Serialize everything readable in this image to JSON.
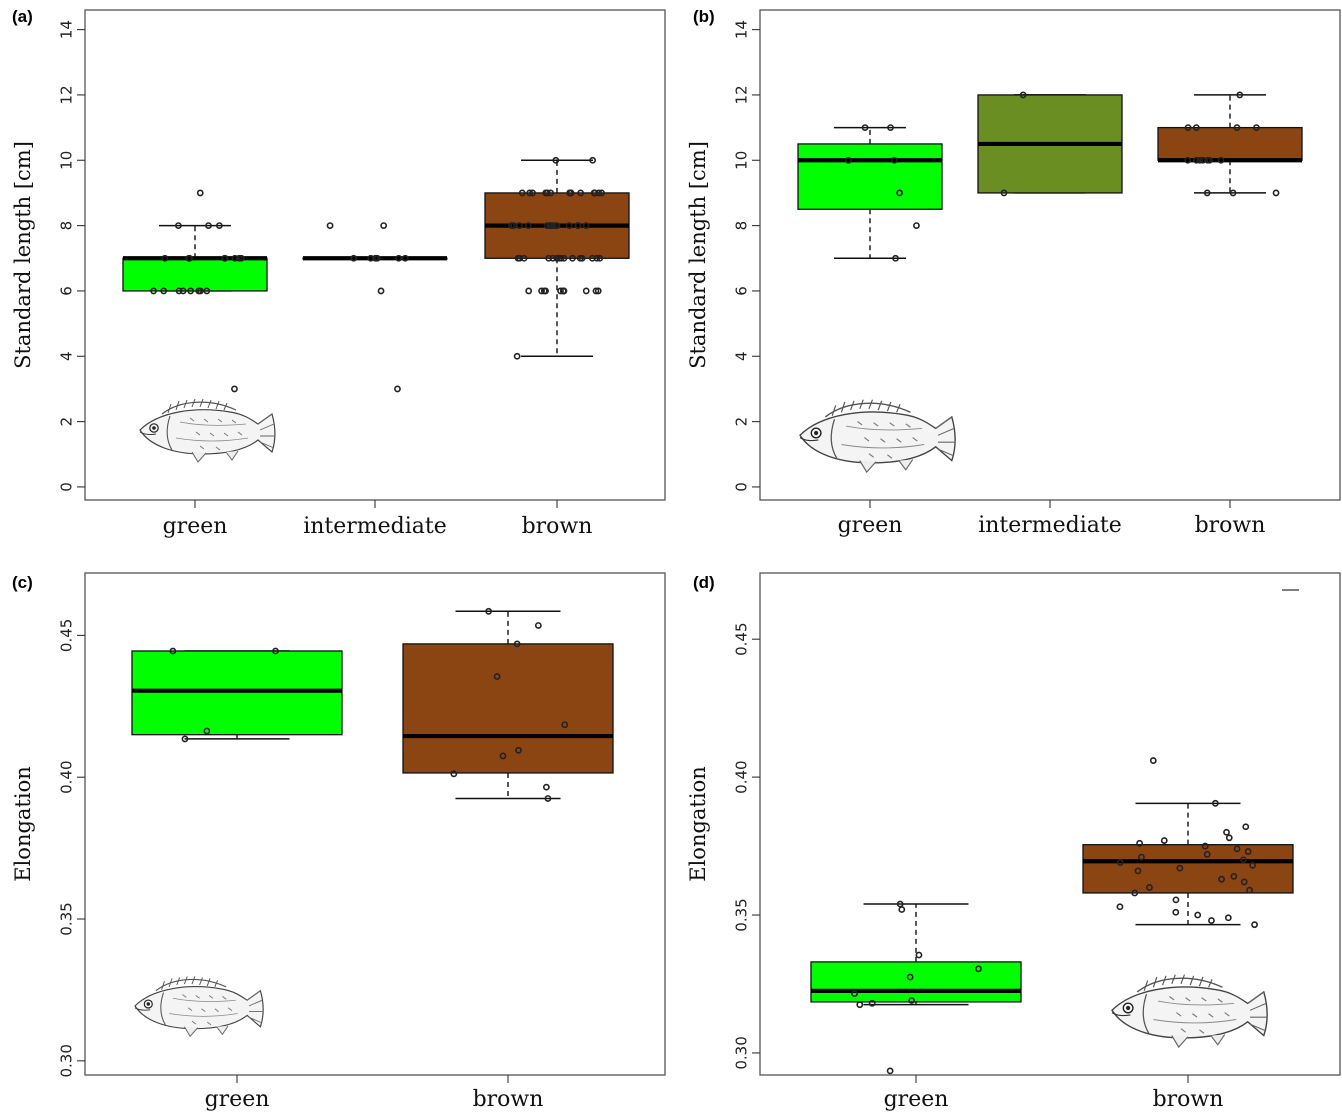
{
  "colors": {
    "green": "#00ff00",
    "intermediate": "#6b8e23",
    "brown": "#8b4513",
    "median": "#000000",
    "frame": "#555555",
    "point": "#222222"
  },
  "chart_data": [
    {
      "id": "a",
      "panel_label": "(a)",
      "type": "box",
      "ylabel": "Standard length [cm]",
      "xlabel": "",
      "ylim": [
        -0.4,
        14.6
      ],
      "yticks": [
        0,
        2,
        4,
        6,
        8,
        10,
        12,
        14
      ],
      "ytick_labels": [
        "0",
        "2",
        "4",
        "6",
        "8",
        "10",
        "12",
        "14"
      ],
      "grid": false,
      "fish_illustration": "bottom-left",
      "categories": [
        "green",
        "intermediate",
        "brown"
      ],
      "series": [
        {
          "category": "green",
          "color_key": "green",
          "whisker_low": 6,
          "q1": 6,
          "median": 7,
          "q3": 7,
          "whisker_high": 8,
          "points": [
            3,
            6,
            6,
            6,
            6,
            6,
            6,
            6,
            6,
            7,
            7,
            7,
            7,
            7,
            7,
            7,
            7,
            8,
            8,
            8,
            9
          ]
        },
        {
          "category": "intermediate",
          "color_key": "intermediate",
          "whisker_low": 7,
          "q1": 7,
          "median": 7,
          "q3": 7,
          "whisker_high": 7,
          "points": [
            3,
            6,
            7,
            7,
            7,
            7,
            7,
            7,
            7,
            8,
            8
          ]
        },
        {
          "category": "brown",
          "color_key": "brown",
          "whisker_low": 4,
          "q1": 7,
          "median": 8,
          "q3": 9,
          "whisker_high": 10,
          "points": [
            4,
            6,
            6,
            6,
            6,
            6,
            6,
            6,
            6,
            6,
            6,
            6,
            6,
            7,
            7,
            7,
            7,
            7,
            7,
            7,
            7,
            7,
            7,
            7,
            7,
            7,
            7,
            7,
            7,
            8,
            8,
            8,
            8,
            8,
            8,
            8,
            8,
            8,
            8,
            8,
            8,
            8,
            8,
            8,
            9,
            9,
            9,
            9,
            9,
            9,
            9,
            9,
            9,
            9,
            9,
            9,
            9,
            9,
            9,
            9,
            10,
            10
          ]
        }
      ]
    },
    {
      "id": "b",
      "panel_label": "(b)",
      "type": "box",
      "ylabel": "Standard length [cm]",
      "xlabel": "",
      "ylim": [
        -0.4,
        14.6
      ],
      "yticks": [
        0,
        2,
        4,
        6,
        8,
        10,
        12,
        14
      ],
      "ytick_labels": [
        "0",
        "2",
        "4",
        "6",
        "8",
        "10",
        "12",
        "14"
      ],
      "grid": false,
      "fish_illustration": "bottom-left",
      "categories": [
        "green",
        "intermediate",
        "brown"
      ],
      "series": [
        {
          "category": "green",
          "color_key": "green",
          "whisker_low": 7,
          "q1": 8.5,
          "median": 10,
          "q3": 10.5,
          "whisker_high": 11,
          "points": [
            7,
            8,
            9,
            10,
            10,
            10,
            11,
            11
          ]
        },
        {
          "category": "intermediate",
          "color_key": "intermediate",
          "whisker_low": 9,
          "q1": 9,
          "median": 10.5,
          "q3": 12,
          "whisker_high": 12,
          "points": [
            9,
            12
          ]
        },
        {
          "category": "brown",
          "color_key": "brown",
          "whisker_low": 9,
          "q1": 10,
          "median": 10,
          "q3": 11,
          "whisker_high": 12,
          "points": [
            9,
            9,
            9,
            10,
            10,
            10,
            10,
            10,
            10,
            10,
            11,
            11,
            11,
            11,
            12
          ]
        }
      ]
    },
    {
      "id": "c",
      "panel_label": "(c)",
      "type": "box",
      "ylabel": "Elongation",
      "xlabel": "",
      "ylim": [
        0.295,
        0.472
      ],
      "yticks": [
        0.3,
        0.35,
        0.4,
        0.45
      ],
      "ytick_labels": [
        "0.30",
        "0.35",
        "0.40",
        "0.45"
      ],
      "grid": false,
      "fish_illustration": "bottom-left",
      "categories": [
        "green",
        "brown"
      ],
      "series": [
        {
          "category": "green",
          "color_key": "green",
          "whisker_low": 0.4135,
          "q1": 0.415,
          "median": 0.4305,
          "q3": 0.4445,
          "whisker_high": 0.4445,
          "points": [
            0.4135,
            0.4163,
            0.4445,
            0.4445
          ]
        },
        {
          "category": "brown",
          "color_key": "brown",
          "whisker_low": 0.3925,
          "q1": 0.4015,
          "median": 0.4145,
          "q3": 0.447,
          "whisker_high": 0.4585,
          "points": [
            0.3925,
            0.3965,
            0.4012,
            0.4075,
            0.4095,
            0.4185,
            0.4355,
            0.447,
            0.4535,
            0.4585
          ]
        }
      ]
    },
    {
      "id": "d",
      "panel_label": "(d)",
      "type": "box",
      "ylabel": "Elongation",
      "xlabel": "",
      "ylim": [
        0.292,
        0.474
      ],
      "yticks": [
        0.3,
        0.35,
        0.4,
        0.45
      ],
      "ytick_labels": [
        "0.30",
        "0.35",
        "0.40",
        "0.45"
      ],
      "grid": false,
      "fish_illustration": "bottom-right",
      "categories": [
        "green",
        "brown"
      ],
      "series": [
        {
          "category": "green",
          "color_key": "green",
          "whisker_low": 0.3175,
          "q1": 0.3185,
          "median": 0.3225,
          "q3": 0.333,
          "whisker_high": 0.354,
          "points": [
            0.2935,
            0.3175,
            0.318,
            0.319,
            0.3215,
            0.3275,
            0.3305,
            0.3355,
            0.352,
            0.354
          ]
        },
        {
          "category": "brown",
          "color_key": "brown",
          "whisker_low": 0.3465,
          "q1": 0.358,
          "median": 0.3695,
          "q3": 0.3755,
          "whisker_high": 0.3905,
          "points": [
            0.3465,
            0.348,
            0.349,
            0.35,
            0.351,
            0.353,
            0.3555,
            0.358,
            0.359,
            0.36,
            0.362,
            0.363,
            0.364,
            0.366,
            0.367,
            0.368,
            0.369,
            0.37,
            0.371,
            0.372,
            0.373,
            0.374,
            0.375,
            0.376,
            0.377,
            0.378,
            0.38,
            0.382,
            0.3905,
            0.406
          ]
        }
      ]
    }
  ]
}
